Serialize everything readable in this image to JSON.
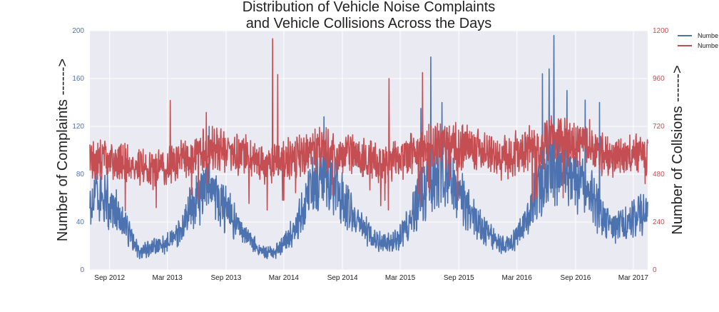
{
  "chart_data": {
    "type": "line",
    "title": [
      "Distribution of Vehicle Noise Complaints",
      "and Vehicle Collisions Across the Days"
    ],
    "ylabel_left": "Number of Complaints ------>",
    "ylabel_right": "Number of Collsions ------>",
    "x_range": [
      "2012-07-01",
      "2017-04-15"
    ],
    "x_ticks": [
      {
        "date": "2012-09-01",
        "label": "Sep 2012"
      },
      {
        "date": "2013-03-01",
        "label": "Mar 2013"
      },
      {
        "date": "2013-09-01",
        "label": "Sep 2013"
      },
      {
        "date": "2014-03-01",
        "label": "Mar 2014"
      },
      {
        "date": "2014-09-01",
        "label": "Sep 2014"
      },
      {
        "date": "2015-03-01",
        "label": "Mar 2015"
      },
      {
        "date": "2015-09-01",
        "label": "Sep 2015"
      },
      {
        "date": "2016-03-01",
        "label": "Mar 2016"
      },
      {
        "date": "2016-09-01",
        "label": "Sep 2016"
      },
      {
        "date": "2017-03-01",
        "label": "Mar 2017"
      }
    ],
    "ylim_left": [
      0,
      200
    ],
    "yticks_left": [
      0,
      40,
      80,
      120,
      160,
      200
    ],
    "ylim_right": [
      0,
      1200
    ],
    "yticks_right": [
      0,
      240,
      480,
      720,
      960,
      1200
    ],
    "grid": true,
    "legend_position": "top-right, outside plot (cut off)",
    "legend": [
      "Numbe",
      "Numbe"
    ],
    "series": [
      {
        "axis": "left",
        "color": "#4c72b0",
        "points": [
          [
            "2012-07-01",
            55
          ],
          [
            "2012-08-01",
            62
          ],
          [
            "2012-09-01",
            55
          ],
          [
            "2012-10-01",
            45
          ],
          [
            "2012-11-01",
            30
          ],
          [
            "2012-12-01",
            15
          ],
          [
            "2013-01-01",
            18
          ],
          [
            "2013-02-01",
            20
          ],
          [
            "2013-03-01",
            22
          ],
          [
            "2013-04-01",
            28
          ],
          [
            "2013-05-01",
            45
          ],
          [
            "2013-06-01",
            60
          ],
          [
            "2013-07-01",
            68
          ],
          [
            "2013-08-01",
            62
          ],
          [
            "2013-09-01",
            50
          ],
          [
            "2013-10-01",
            40
          ],
          [
            "2013-11-01",
            28
          ],
          [
            "2013-12-01",
            20
          ],
          [
            "2014-01-01",
            14
          ],
          [
            "2014-02-01",
            15
          ],
          [
            "2014-03-01",
            22
          ],
          [
            "2014-04-01",
            32
          ],
          [
            "2014-05-01",
            50
          ],
          [
            "2014-06-01",
            70
          ],
          [
            "2014-07-01",
            80
          ],
          [
            "2014-08-01",
            72
          ],
          [
            "2014-09-01",
            60
          ],
          [
            "2014-10-01",
            48
          ],
          [
            "2014-11-01",
            35
          ],
          [
            "2014-12-01",
            28
          ],
          [
            "2015-01-01",
            24
          ],
          [
            "2015-02-01",
            22
          ],
          [
            "2015-03-01",
            28
          ],
          [
            "2015-04-01",
            40
          ],
          [
            "2015-05-01",
            60
          ],
          [
            "2015-06-01",
            75
          ],
          [
            "2015-07-01",
            82
          ],
          [
            "2015-08-01",
            75
          ],
          [
            "2015-09-01",
            65
          ],
          [
            "2015-10-01",
            50
          ],
          [
            "2015-11-01",
            38
          ],
          [
            "2015-12-01",
            30
          ],
          [
            "2016-01-01",
            22
          ],
          [
            "2016-02-01",
            20
          ],
          [
            "2016-03-01",
            28
          ],
          [
            "2016-04-01",
            42
          ],
          [
            "2016-05-01",
            65
          ],
          [
            "2016-06-01",
            82
          ],
          [
            "2016-07-01",
            90
          ],
          [
            "2016-08-01",
            85
          ],
          [
            "2016-09-01",
            78
          ],
          [
            "2016-10-01",
            70
          ],
          [
            "2016-11-01",
            55
          ],
          [
            "2016-12-01",
            42
          ],
          [
            "2017-01-01",
            35
          ],
          [
            "2017-02-01",
            38
          ],
          [
            "2017-03-01",
            45
          ],
          [
            "2017-04-15",
            48
          ]
        ],
        "peaks": [
          [
            "2016-06-25",
            196
          ],
          [
            "2015-06-05",
            178
          ],
          [
            "2016-06-10",
            168
          ],
          [
            "2016-05-20",
            164
          ],
          [
            "2016-08-05",
            150
          ],
          [
            "2014-07-05",
            128
          ],
          [
            "2013-07-10",
            120
          ],
          [
            "2016-10-01",
            142
          ],
          [
            "2016-11-15",
            140
          ],
          [
            "2015-07-10",
            140
          ],
          [
            "2015-05-05",
            135
          ]
        ]
      },
      {
        "axis": "right",
        "color": "#c44e52",
        "points": [
          [
            "2012-07-01",
            560
          ],
          [
            "2012-10-01",
            540
          ],
          [
            "2013-01-01",
            500
          ],
          [
            "2013-04-01",
            540
          ],
          [
            "2013-07-01",
            600
          ],
          [
            "2013-10-01",
            590
          ],
          [
            "2014-01-01",
            520
          ],
          [
            "2014-04-01",
            560
          ],
          [
            "2014-07-01",
            600
          ],
          [
            "2014-10-01",
            580
          ],
          [
            "2015-01-01",
            530
          ],
          [
            "2015-04-01",
            580
          ],
          [
            "2015-07-01",
            630
          ],
          [
            "2015-10-01",
            620
          ],
          [
            "2016-01-01",
            560
          ],
          [
            "2016-04-01",
            600
          ],
          [
            "2016-07-01",
            660
          ],
          [
            "2016-10-01",
            640
          ],
          [
            "2017-01-01",
            560
          ],
          [
            "2017-04-15",
            590
          ]
        ],
        "peaks": [
          [
            "2014-01-25",
            1160
          ],
          [
            "2014-02-10",
            980
          ],
          [
            "2015-01-25",
            960
          ],
          [
            "2013-03-10",
            850
          ],
          [
            "2015-05-10",
            990
          ],
          [
            "2013-07-01",
            790
          ],
          [
            "2014-01-08",
            300
          ]
        ]
      }
    ]
  }
}
